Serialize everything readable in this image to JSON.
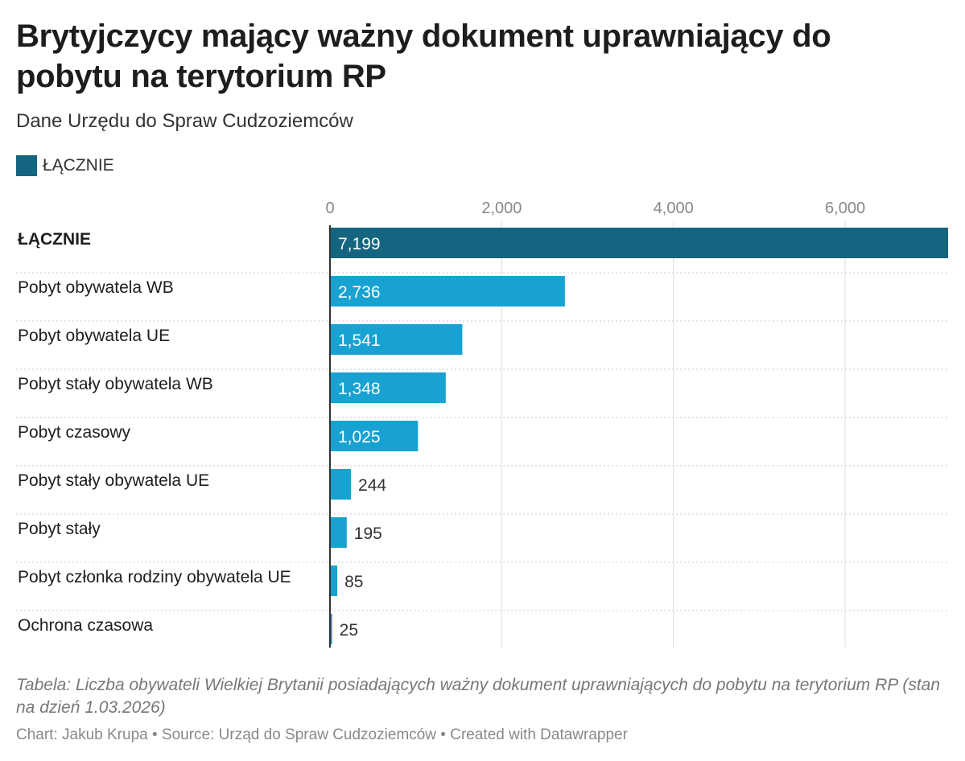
{
  "title": "Brytyjczycy mający ważny dokument uprawniający do pobytu na terytorium RP",
  "subtitle": "Dane Urzędu do Spraw Cudzoziemców",
  "legend": {
    "label": "ŁĄCZNIE",
    "color": "#156580"
  },
  "colors": {
    "total": "#156580",
    "category": "#17a2d2",
    "grid": "#dddddd",
    "axis": "#333333",
    "label_inside": "#ffffff",
    "label_outside": "#333333",
    "tick_text": "#888888"
  },
  "chart_data": {
    "type": "bar",
    "orientation": "horizontal",
    "categories": [
      "ŁĄCZNIE",
      "Pobyt obywatela WB",
      "Pobyt obywatela UE",
      "Pobyt stały obywatela WB",
      "Pobyt czasowy",
      "Pobyt stały obywatela UE",
      "Pobyt stały",
      "Pobyt członka rodziny obywatela UE",
      "Ochrona czasowa"
    ],
    "series": [
      {
        "values": [
          7199,
          2736,
          1541,
          1348,
          1025,
          244,
          195,
          85,
          25
        ]
      }
    ],
    "value_labels": [
      "7,199",
      "2,736",
      "1,541",
      "1,348",
      "1,025",
      "244",
      "195",
      "85",
      "25"
    ],
    "highlight_category": "ŁĄCZNIE",
    "xlim": [
      0,
      7199
    ],
    "x_ticks": [
      0,
      2000,
      4000,
      6000
    ],
    "x_tick_labels": [
      "0",
      "2,000",
      "4,000",
      "6,000"
    ],
    "x_axis_position": "top",
    "grid": true,
    "legend_position": "top-left",
    "xlabel": "",
    "ylabel": ""
  },
  "footer": {
    "description": "Tabela: Liczba obywateli Wielkiej Brytanii posiadających ważny dokument uprawniających do pobytu na terytorium RP (stan na dzień 1.03.2026)",
    "credit_parts": [
      "Chart: Jakub Krupa",
      "Source: Urząd do Spraw Cudzoziemców",
      "Created with Datawrapper"
    ],
    "separator": "•"
  }
}
